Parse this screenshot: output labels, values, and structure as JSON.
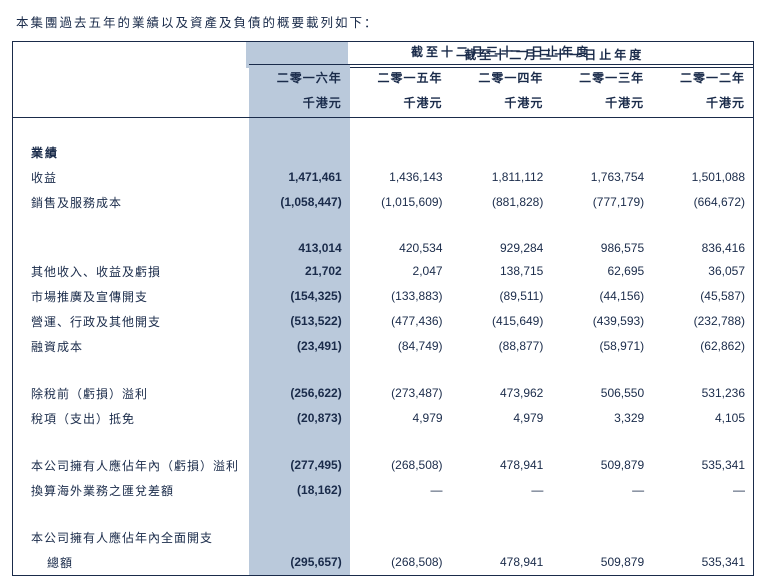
{
  "intro_text": "本集團過去五年的業績以及資產及負債的概要載列如下：",
  "table": {
    "super_header": "截至十二月三十一日止年度",
    "years": [
      "二零一六年",
      "二零一五年",
      "二零一四年",
      "二零一三年",
      "二零一二年"
    ],
    "unit": "千港元",
    "section1_label": "業績",
    "rows1": [
      {
        "label": "收益",
        "v": [
          "1,471,461",
          "1,436,143",
          "1,811,112",
          "1,763,754",
          "1,501,088"
        ]
      },
      {
        "label": "銷售及服務成本",
        "v": [
          "(1,058,447)",
          "(1,015,609)",
          "(881,828)",
          "(777,179)",
          "(664,672)"
        ]
      }
    ],
    "rows2": [
      {
        "label": "",
        "v": [
          "413,014",
          "420,534",
          "929,284",
          "986,575",
          "836,416"
        ]
      },
      {
        "label": "其他收入、收益及虧損",
        "v": [
          "21,702",
          "2,047",
          "138,715",
          "62,695",
          "36,057"
        ]
      },
      {
        "label": "市場推廣及宣傳開支",
        "v": [
          "(154,325)",
          "(133,883)",
          "(89,511)",
          "(44,156)",
          "(45,587)"
        ]
      },
      {
        "label": "營運、行政及其他開支",
        "v": [
          "(513,522)",
          "(477,436)",
          "(415,649)",
          "(439,593)",
          "(232,788)"
        ]
      },
      {
        "label": "融資成本",
        "v": [
          "(23,491)",
          "(84,749)",
          "(88,877)",
          "(58,971)",
          "(62,862)"
        ]
      }
    ],
    "rows3": [
      {
        "label": "除稅前（虧損）溢利",
        "v": [
          "(256,622)",
          "(273,487)",
          "473,962",
          "506,550",
          "531,236"
        ]
      },
      {
        "label": "稅項（支出）抵免",
        "v": [
          "(20,873)",
          "4,979",
          "4,979",
          "3,329",
          "4,105"
        ]
      }
    ],
    "rows4": [
      {
        "label": "本公司擁有人應佔年內（虧損）溢利",
        "v": [
          "(277,495)",
          "(268,508)",
          "478,941",
          "509,879",
          "535,341"
        ]
      },
      {
        "label": "換算海外業務之匯兌差額",
        "v": [
          "(18,162)",
          "—",
          "—",
          "—",
          "—"
        ]
      }
    ],
    "rows5": [
      {
        "label": "本公司擁有人應佔年內全面開支",
        "label2": "總額",
        "v": [
          "(295,657)",
          "(268,508)",
          "478,941",
          "509,879",
          "535,341"
        ]
      }
    ]
  },
  "colors": {
    "text": "#1a2b4a",
    "shade": "#bac9db",
    "border": "#1a2b4a",
    "bg": "#ffffff"
  }
}
